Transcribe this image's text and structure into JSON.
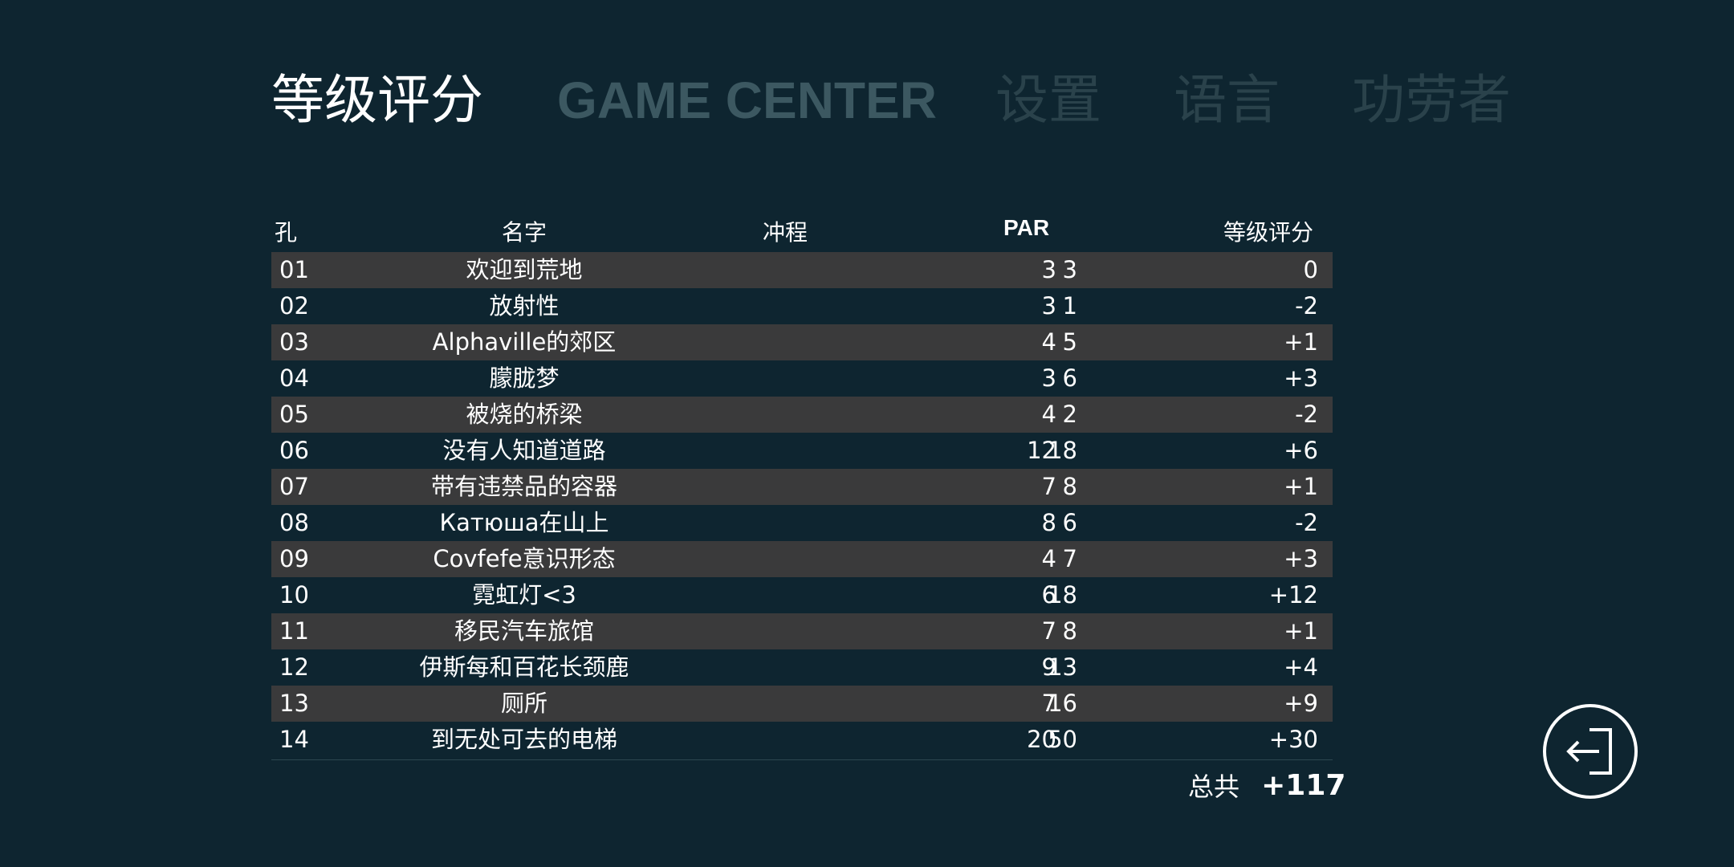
{
  "tabs": [
    {
      "label": "等级评分"
    },
    {
      "label": "GAME CENTER"
    },
    {
      "label": "设置"
    },
    {
      "label": "语言"
    },
    {
      "label": "功劳者"
    }
  ],
  "table": {
    "headers": {
      "hole": "孔",
      "name": "名字",
      "strokes": "冲程",
      "par": "PAR",
      "rating": "等级评分"
    },
    "rows": [
      {
        "hole": "01",
        "name": "欢迎到荒地",
        "strokes": "3",
        "par": "3",
        "rating": "0"
      },
      {
        "hole": "02",
        "name": "放射性",
        "strokes": "1",
        "par": "3",
        "rating": "-2"
      },
      {
        "hole": "03",
        "name": "Alphaville的郊区",
        "strokes": "5",
        "par": "4",
        "rating": "+1"
      },
      {
        "hole": "04",
        "name": "朦胧梦",
        "strokes": "6",
        "par": "3",
        "rating": "+3"
      },
      {
        "hole": "05",
        "name": "被烧的桥梁",
        "strokes": "2",
        "par": "4",
        "rating": "-2"
      },
      {
        "hole": "06",
        "name": "没有人知道道路",
        "strokes": "18",
        "par": "12",
        "rating": "+6"
      },
      {
        "hole": "07",
        "name": "带有违禁品的容器",
        "strokes": "8",
        "par": "7",
        "rating": "+1"
      },
      {
        "hole": "08",
        "name": "Катюша在山上",
        "strokes": "6",
        "par": "8",
        "rating": "-2"
      },
      {
        "hole": "09",
        "name": "Covfefe意识形态",
        "strokes": "7",
        "par": "4",
        "rating": "+3"
      },
      {
        "hole": "10",
        "name": "霓虹灯<3",
        "strokes": "18",
        "par": "6",
        "rating": "+12"
      },
      {
        "hole": "11",
        "name": "移民汽车旅馆",
        "strokes": "8",
        "par": "7",
        "rating": "+1"
      },
      {
        "hole": "12",
        "name": "伊斯每和百花长颈鹿",
        "strokes": "13",
        "par": "9",
        "rating": "+4"
      },
      {
        "hole": "13",
        "name": "厕所",
        "strokes": "16",
        "par": "7",
        "rating": "+9"
      },
      {
        "hole": "14",
        "name": "到无处可去的电梯",
        "strokes": "50",
        "par": "20",
        "rating": "+30"
      }
    ],
    "total_label": "总共",
    "total_value": "+117"
  },
  "exit_button": {
    "icon": "exit-icon"
  },
  "colors": {
    "background": "#0e2530",
    "row_shade": "#3a3a3b",
    "tab_active": "#ffffff",
    "tab_inactive": "#2a424b"
  }
}
